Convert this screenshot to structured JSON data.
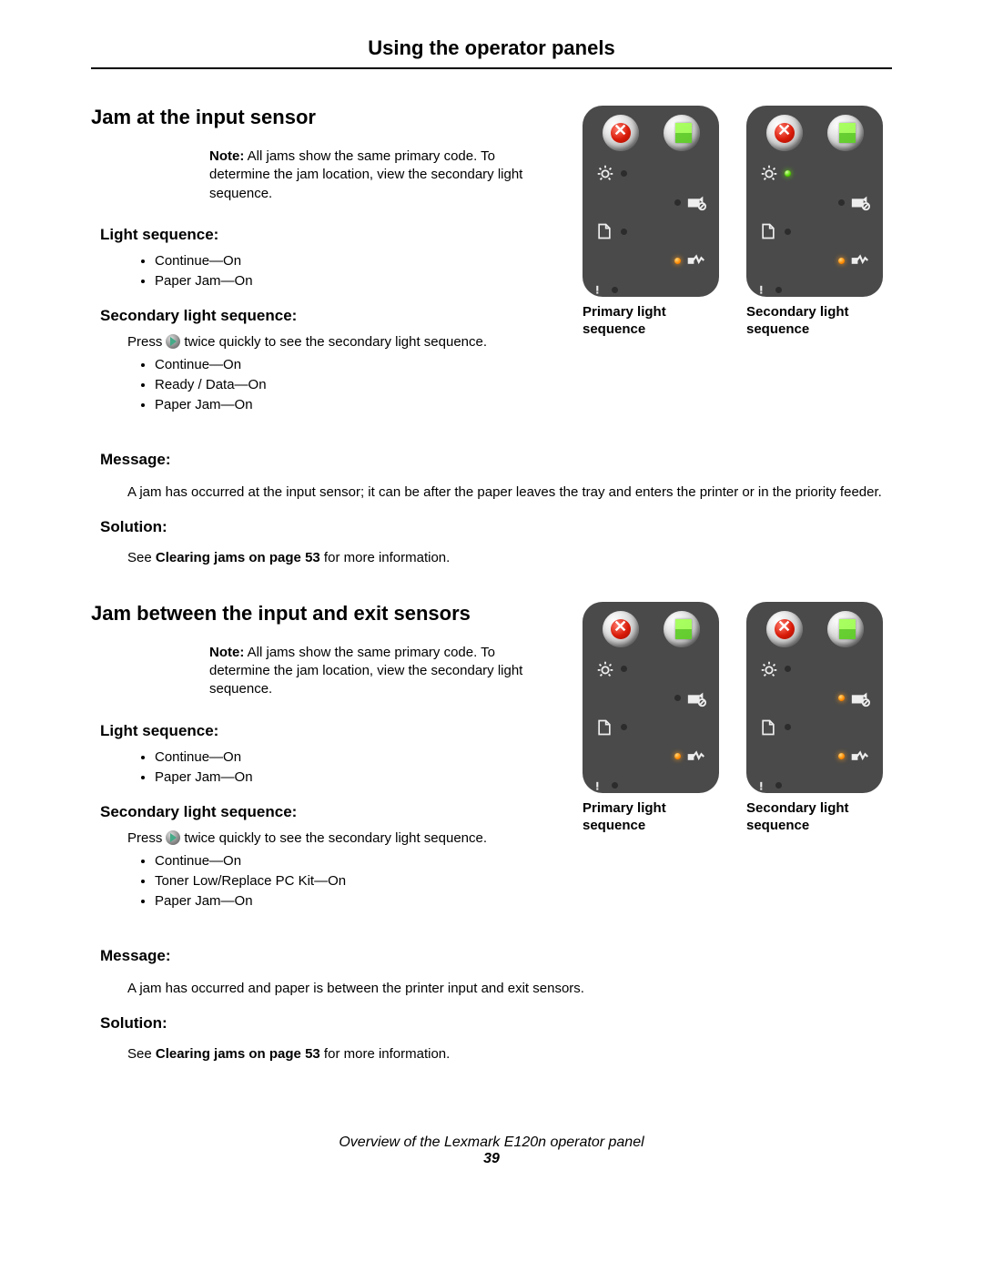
{
  "page": {
    "title": "Using the operator panels",
    "footer_line": "Overview of the Lexmark E120n operator panel",
    "footer_page": "39"
  },
  "sections": [
    {
      "heading": "Jam at the input sensor",
      "note_label": "Note:",
      "note_text": "All jams show the same primary code. To determine the jam location, view the secondary light sequence.",
      "ls_heading": "Light sequence:",
      "ls_items": [
        "Continue—On",
        "Paper Jam—On"
      ],
      "sls_heading": "Secondary light sequence:",
      "press_pre": "Press",
      "press_post": "twice quickly to see the secondary light sequence.",
      "sls_items": [
        "Continue—On",
        "Ready / Data—On",
        "Paper Jam—On"
      ],
      "msg_heading": "Message:",
      "msg_text": "A jam has occurred at the input sensor; it can be after the paper leaves the tray and enters the printer or in the priority feeder.",
      "sol_heading": "Solution:",
      "sol_pre": "See ",
      "sol_bold": "Clearing jams on page 53",
      "sol_post": " for more information.",
      "primary_caption": "Primary light sequence",
      "secondary_caption": "Secondary light sequence",
      "panel_primary": {
        "ready": "off",
        "toner": "off",
        "jam": "orange"
      },
      "panel_secondary": {
        "ready": "green",
        "toner": "off",
        "jam": "orange"
      }
    },
    {
      "heading": "Jam between the input and exit sensors",
      "note_label": "Note:",
      "note_text": "All jams show the same primary code. To determine the jam location, view the secondary light sequence.",
      "ls_heading": "Light sequence:",
      "ls_items": [
        "Continue—On",
        "Paper Jam—On"
      ],
      "sls_heading": "Secondary light sequence:",
      "press_pre": "Press",
      "press_post": "twice quickly to see the secondary light sequence.",
      "sls_items": [
        "Continue—On",
        "Toner Low/Replace PC Kit—On",
        "Paper Jam—On"
      ],
      "msg_heading": "Message:",
      "msg_text": "A jam has occurred and paper is between the printer input and exit sensors.",
      "sol_heading": "Solution:",
      "sol_pre": "See ",
      "sol_bold": "Clearing jams on page 53",
      "sol_post": " for more information.",
      "primary_caption": "Primary light sequence",
      "secondary_caption": "Secondary light sequence",
      "panel_primary": {
        "ready": "off",
        "toner": "off",
        "jam": "orange"
      },
      "panel_secondary": {
        "ready": "off",
        "toner": "orange",
        "jam": "orange"
      }
    }
  ]
}
